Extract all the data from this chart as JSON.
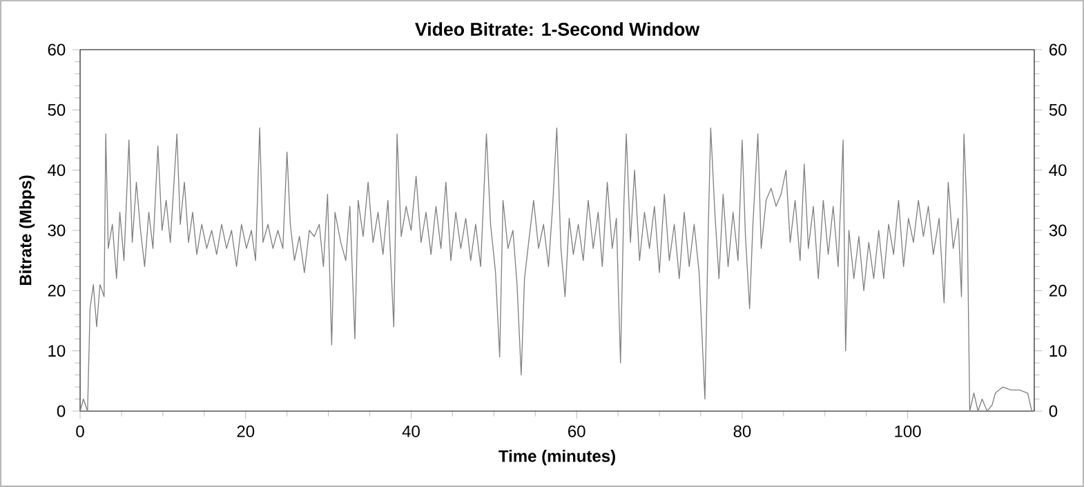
{
  "chart_data": {
    "type": "line",
    "title": "Video Bitrate: 1-Second Window",
    "xlabel": "Time (minutes)",
    "ylabel": "Bitrate (Mbps)",
    "xlim": [
      0,
      115.3
    ],
    "xticks": [
      0,
      20,
      40,
      60,
      80,
      100
    ],
    "ylim": [
      0,
      60
    ],
    "yticks": [
      0,
      10,
      20,
      30,
      40,
      50,
      60
    ],
    "y2lim": [
      0,
      60
    ],
    "y2ticks": [
      0,
      10,
      20,
      30,
      40,
      50,
      60
    ],
    "series": [
      {
        "color": "#808080",
        "x": [
          0,
          0.4,
          0.9,
          1.2,
          1.6,
          2.0,
          2.4,
          2.9,
          3.1,
          3.4,
          3.9,
          4.4,
          4.8,
          5.3,
          5.9,
          6.3,
          6.8,
          7.3,
          7.8,
          8.3,
          8.8,
          9.4,
          9.9,
          10.4,
          10.9,
          11.7,
          12.1,
          12.6,
          13.1,
          13.6,
          14.1,
          14.7,
          15.3,
          15.9,
          16.5,
          17.1,
          17.7,
          18.3,
          18.9,
          19.5,
          20.1,
          20.7,
          21.2,
          21.7,
          22.1,
          22.7,
          23.3,
          23.9,
          24.5,
          25.0,
          25.4,
          25.9,
          26.5,
          27.1,
          27.7,
          28.3,
          28.9,
          29.4,
          29.9,
          30.4,
          30.8,
          31.5,
          32.1,
          32.6,
          33.2,
          33.6,
          34.2,
          34.8,
          35.4,
          36.0,
          36.6,
          37.2,
          37.9,
          38.3,
          38.8,
          39.4,
          40.0,
          40.6,
          41.2,
          41.8,
          42.4,
          43.0,
          43.6,
          44.2,
          44.8,
          45.4,
          46.0,
          46.6,
          47.2,
          47.8,
          48.4,
          49.1,
          49.6,
          50.2,
          50.7,
          51.1,
          51.7,
          52.3,
          52.8,
          53.3,
          53.7,
          54.2,
          54.8,
          55.4,
          56.0,
          56.6,
          57.1,
          57.6,
          58.1,
          58.6,
          59.1,
          59.6,
          60.2,
          60.8,
          61.4,
          62.0,
          62.6,
          63.1,
          63.7,
          64.3,
          64.8,
          65.3,
          65.7,
          66.0,
          66.5,
          67.0,
          67.6,
          68.2,
          68.8,
          69.4,
          70.0,
          70.6,
          71.2,
          71.8,
          72.4,
          73.0,
          73.6,
          74.2,
          74.8,
          75.5,
          75.9,
          76.2,
          76.7,
          77.2,
          77.7,
          78.3,
          78.9,
          79.5,
          80.0,
          80.4,
          80.9,
          81.3,
          81.9,
          82.3,
          82.9,
          83.5,
          84.1,
          84.7,
          85.3,
          85.8,
          86.4,
          87.0,
          87.5,
          88.0,
          88.6,
          89.2,
          89.8,
          90.4,
          91.0,
          91.6,
          92.2,
          92.5,
          92.9,
          93.5,
          94.1,
          94.7,
          95.3,
          95.9,
          96.5,
          97.1,
          97.7,
          98.3,
          98.9,
          99.5,
          100.1,
          100.7,
          101.3,
          101.9,
          102.5,
          103.1,
          103.8,
          104.4,
          104.9,
          105.5,
          106.1,
          106.5,
          106.8,
          107.2,
          107.5,
          108.0,
          108.5,
          109.0,
          109.6,
          110.2,
          110.6,
          111.5,
          112.5,
          113.5,
          114.5,
          115.0
        ],
        "values": [
          0,
          2,
          0,
          17,
          21,
          14,
          21,
          19,
          46,
          27,
          31,
          22,
          33,
          25,
          45,
          28,
          38,
          30,
          24,
          33,
          27,
          44,
          30,
          35,
          28,
          46,
          31,
          38,
          28,
          33,
          26,
          31,
          27,
          30,
          26,
          31,
          27,
          30,
          24,
          31,
          27,
          30,
          25,
          47,
          28,
          31,
          27,
          30,
          27,
          43,
          31,
          25,
          29,
          23,
          30,
          29,
          31,
          24,
          36,
          11,
          33,
          28,
          25,
          34,
          12,
          35,
          29,
          38,
          28,
          33,
          26,
          35,
          14,
          46,
          29,
          34,
          30,
          39,
          28,
          33,
          26,
          34,
          27,
          38,
          25,
          33,
          27,
          32,
          25,
          31,
          24,
          46,
          31,
          23,
          9,
          35,
          27,
          30,
          21,
          6,
          22,
          28,
          35,
          27,
          31,
          24,
          34,
          47,
          27,
          19,
          32,
          26,
          31,
          25,
          35,
          27,
          33,
          24,
          38,
          27,
          32,
          8,
          34,
          46,
          28,
          40,
          25,
          33,
          27,
          34,
          23,
          36,
          25,
          31,
          22,
          33,
          24,
          31,
          23,
          2,
          30,
          47,
          33,
          22,
          36,
          24,
          33,
          25,
          45,
          29,
          17,
          31,
          46,
          27,
          35,
          37,
          34,
          36,
          40,
          28,
          35,
          25,
          41,
          27,
          34,
          22,
          35,
          26,
          34,
          24,
          45,
          10,
          30,
          22,
          29,
          20,
          28,
          22,
          30,
          22,
          31,
          26,
          35,
          24,
          32,
          28,
          35,
          29,
          34,
          26,
          32,
          18,
          38,
          27,
          32,
          19,
          46,
          32,
          0,
          3,
          0,
          2,
          0,
          1,
          3,
          4,
          3.5,
          3.5,
          3,
          0
        ]
      }
    ]
  }
}
